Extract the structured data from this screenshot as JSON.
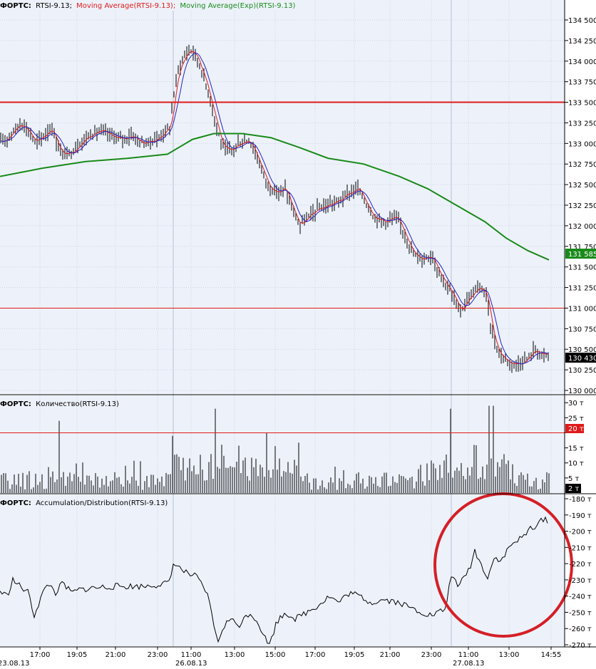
{
  "colors": {
    "background": "#ffffff",
    "plot_background": "#edf2fa",
    "grid": "#c9d4e4",
    "price_bars": "#000000",
    "sma": "#e01a1a",
    "ema_fast": "#2323c8",
    "ema_slow": "#1a8a1a",
    "level": "#e01a1a",
    "ad": "#000000",
    "annotation": "#d51f26"
  },
  "price_panel": {
    "legend_name": "ФОРТС:",
    "legend_series": "RTSI-9.13;",
    "legend_ma": "Moving Average(RTSI-9.13);",
    "legend_ema": "Moving Average(Exp)(RTSI-9.13)",
    "ema_value_label": "131 585",
    "last_price_label": "130 430"
  },
  "volume_panel": {
    "legend_name": "ФОРТС:",
    "legend_text": "Количество(RTSI-9.13)",
    "level_label": "20 т",
    "last_value_label": "2 т"
  },
  "ad_panel": {
    "legend_name": "ФОРТС:",
    "legend_text": "Accumulation/Distribution(RTSI-9.13)"
  },
  "x_axis": {
    "time_labels": [
      "17:00",
      "19:05",
      "21:00",
      "23:00",
      "11:00",
      "13:00",
      "15:00",
      "17:00",
      "19:05",
      "21:00",
      "23:00",
      "11:00",
      "13:00",
      "14:55"
    ],
    "date_labels": [
      "23.08.13",
      "26.08.13",
      "27.08.13"
    ]
  },
  "chart_data": [
    {
      "type": "bar",
      "title": "",
      "y_ticks": [
        "134 500",
        "134 250",
        "134 000",
        "133 750",
        "133 500",
        "133 250",
        "133 000",
        "132 750",
        "132 500",
        "132 250",
        "132 000",
        "131 750",
        "131 500",
        "131 250",
        "131 000",
        "130 750",
        "130 500",
        "130 250",
        "130 000"
      ],
      "ylim": [
        130000,
        134500
      ],
      "horizontal_levels": [
        133500,
        131000
      ],
      "close_path": [
        {
          "x": 0,
          "y": 133000
        },
        {
          "x": 8,
          "y": 133050
        },
        {
          "x": 18,
          "y": 133150
        },
        {
          "x": 30,
          "y": 133250
        },
        {
          "x": 40,
          "y": 133150
        },
        {
          "x": 50,
          "y": 133000
        },
        {
          "x": 62,
          "y": 133100
        },
        {
          "x": 72,
          "y": 133200
        },
        {
          "x": 82,
          "y": 132950
        },
        {
          "x": 90,
          "y": 132850
        },
        {
          "x": 100,
          "y": 132900
        },
        {
          "x": 112,
          "y": 133000
        },
        {
          "x": 125,
          "y": 133100
        },
        {
          "x": 140,
          "y": 133150
        },
        {
          "x": 155,
          "y": 133100
        },
        {
          "x": 170,
          "y": 133050
        },
        {
          "x": 185,
          "y": 133100
        },
        {
          "x": 200,
          "y": 133000
        },
        {
          "x": 220,
          "y": 133050
        },
        {
          "x": 238,
          "y": 133200
        },
        {
          "x": 244,
          "y": 133600
        },
        {
          "x": 250,
          "y": 133900
        },
        {
          "x": 258,
          "y": 134050
        },
        {
          "x": 266,
          "y": 134150
        },
        {
          "x": 276,
          "y": 134050
        },
        {
          "x": 286,
          "y": 133800
        },
        {
          "x": 296,
          "y": 133500
        },
        {
          "x": 304,
          "y": 133200
        },
        {
          "x": 312,
          "y": 132950
        },
        {
          "x": 322,
          "y": 132900
        },
        {
          "x": 335,
          "y": 133000
        },
        {
          "x": 350,
          "y": 133050
        },
        {
          "x": 362,
          "y": 132800
        },
        {
          "x": 375,
          "y": 132500
        },
        {
          "x": 388,
          "y": 132400
        },
        {
          "x": 400,
          "y": 132450
        },
        {
          "x": 410,
          "y": 132200
        },
        {
          "x": 420,
          "y": 132000
        },
        {
          "x": 432,
          "y": 132100
        },
        {
          "x": 445,
          "y": 132200
        },
        {
          "x": 460,
          "y": 132250
        },
        {
          "x": 475,
          "y": 132300
        },
        {
          "x": 490,
          "y": 132400
        },
        {
          "x": 502,
          "y": 132450
        },
        {
          "x": 512,
          "y": 132300
        },
        {
          "x": 525,
          "y": 132100
        },
        {
          "x": 540,
          "y": 132050
        },
        {
          "x": 555,
          "y": 132100
        },
        {
          "x": 568,
          "y": 131900
        },
        {
          "x": 580,
          "y": 131650
        },
        {
          "x": 592,
          "y": 131600
        },
        {
          "x": 605,
          "y": 131650
        },
        {
          "x": 615,
          "y": 131450
        },
        {
          "x": 625,
          "y": 131300
        },
        {
          "x": 635,
          "y": 131150
        },
        {
          "x": 645,
          "y": 130950
        },
        {
          "x": 655,
          "y": 131100
        },
        {
          "x": 665,
          "y": 131200
        },
        {
          "x": 675,
          "y": 131250
        },
        {
          "x": 682,
          "y": 131150
        },
        {
          "x": 690,
          "y": 130700
        },
        {
          "x": 700,
          "y": 130450
        },
        {
          "x": 712,
          "y": 130350
        },
        {
          "x": 725,
          "y": 130320
        },
        {
          "x": 740,
          "y": 130380
        },
        {
          "x": 750,
          "y": 130500
        },
        {
          "x": 760,
          "y": 130430
        },
        {
          "x": 770,
          "y": 130430
        }
      ],
      "ema_slow_path": [
        {
          "x": 0,
          "y": 132600
        },
        {
          "x": 60,
          "y": 132700
        },
        {
          "x": 120,
          "y": 132780
        },
        {
          "x": 180,
          "y": 132820
        },
        {
          "x": 235,
          "y": 132870
        },
        {
          "x": 270,
          "y": 133050
        },
        {
          "x": 300,
          "y": 133120
        },
        {
          "x": 340,
          "y": 133120
        },
        {
          "x": 380,
          "y": 133070
        },
        {
          "x": 420,
          "y": 132950
        },
        {
          "x": 460,
          "y": 132820
        },
        {
          "x": 510,
          "y": 132750
        },
        {
          "x": 560,
          "y": 132600
        },
        {
          "x": 600,
          "y": 132450
        },
        {
          "x": 640,
          "y": 132250
        },
        {
          "x": 680,
          "y": 132050
        },
        {
          "x": 710,
          "y": 131850
        },
        {
          "x": 740,
          "y": 131700
        },
        {
          "x": 770,
          "y": 131585
        }
      ]
    },
    {
      "type": "bar",
      "title": "",
      "y_ticks": [
        "30 т",
        "25 т",
        "20 т",
        "15 т",
        "10 т",
        "5 т"
      ],
      "ylim": [
        0,
        31
      ],
      "horizontal_levels": [
        20
      ]
    },
    {
      "type": "line",
      "title": "",
      "y_ticks": [
        "-180 т",
        "-190 т",
        "-200 т",
        "-210 т",
        "-220 т",
        "-230 т",
        "-240 т",
        "-250 т",
        "-260 т",
        "-270 т"
      ],
      "ylim": [
        -275,
        -178
      ],
      "points": [
        {
          "x": 0,
          "y": -237
        },
        {
          "x": 10,
          "y": -240
        },
        {
          "x": 18,
          "y": -230
        },
        {
          "x": 28,
          "y": -234
        },
        {
          "x": 40,
          "y": -238
        },
        {
          "x": 48,
          "y": -252
        },
        {
          "x": 58,
          "y": -240
        },
        {
          "x": 68,
          "y": -232
        },
        {
          "x": 78,
          "y": -238
        },
        {
          "x": 88,
          "y": -232
        },
        {
          "x": 100,
          "y": -238
        },
        {
          "x": 112,
          "y": -236
        },
        {
          "x": 130,
          "y": -235
        },
        {
          "x": 160,
          "y": -234
        },
        {
          "x": 200,
          "y": -234
        },
        {
          "x": 238,
          "y": -232
        },
        {
          "x": 244,
          "y": -218
        },
        {
          "x": 250,
          "y": -222
        },
        {
          "x": 262,
          "y": -226
        },
        {
          "x": 275,
          "y": -228
        },
        {
          "x": 290,
          "y": -238
        },
        {
          "x": 298,
          "y": -252
        },
        {
          "x": 305,
          "y": -270
        },
        {
          "x": 312,
          "y": -260
        },
        {
          "x": 322,
          "y": -254
        },
        {
          "x": 335,
          "y": -258
        },
        {
          "x": 350,
          "y": -250
        },
        {
          "x": 362,
          "y": -256
        },
        {
          "x": 372,
          "y": -266
        },
        {
          "x": 378,
          "y": -270
        },
        {
          "x": 388,
          "y": -256
        },
        {
          "x": 400,
          "y": -250
        },
        {
          "x": 415,
          "y": -254
        },
        {
          "x": 430,
          "y": -250
        },
        {
          "x": 445,
          "y": -246
        },
        {
          "x": 462,
          "y": -240
        },
        {
          "x": 475,
          "y": -244
        },
        {
          "x": 490,
          "y": -238
        },
        {
          "x": 505,
          "y": -240
        },
        {
          "x": 520,
          "y": -244
        },
        {
          "x": 540,
          "y": -242
        },
        {
          "x": 560,
          "y": -244
        },
        {
          "x": 580,
          "y": -248
        },
        {
          "x": 605,
          "y": -252
        },
        {
          "x": 615,
          "y": -250
        },
        {
          "x": 625,
          "y": -248
        },
        {
          "x": 634,
          "y": -224
        },
        {
          "x": 642,
          "y": -236
        },
        {
          "x": 650,
          "y": -228
        },
        {
          "x": 658,
          "y": -224
        },
        {
          "x": 666,
          "y": -212
        },
        {
          "x": 674,
          "y": -220
        },
        {
          "x": 684,
          "y": -228
        },
        {
          "x": 694,
          "y": -216
        },
        {
          "x": 704,
          "y": -218
        },
        {
          "x": 714,
          "y": -210
        },
        {
          "x": 724,
          "y": -206
        },
        {
          "x": 734,
          "y": -204
        },
        {
          "x": 744,
          "y": -198
        },
        {
          "x": 754,
          "y": -196
        },
        {
          "x": 764,
          "y": -192
        },
        {
          "x": 770,
          "y": -194
        }
      ]
    }
  ]
}
